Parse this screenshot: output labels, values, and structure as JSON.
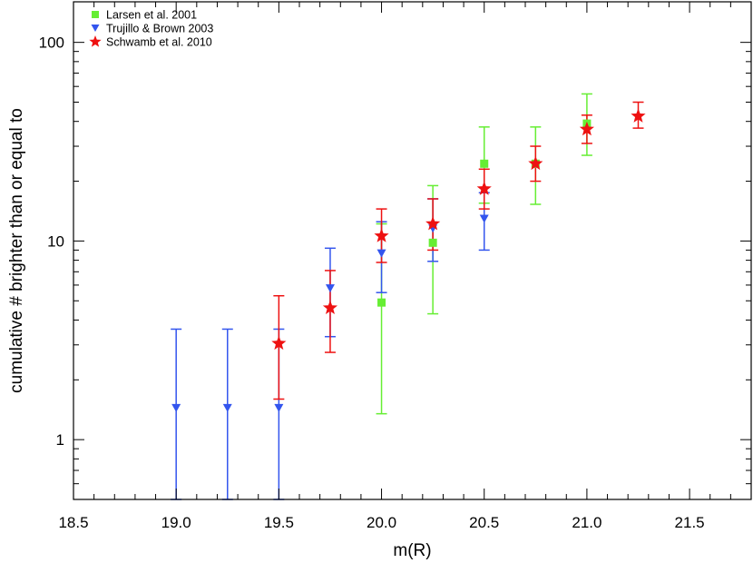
{
  "chart_data": {
    "type": "scatter",
    "title": "",
    "xlabel": "m(R)",
    "ylabel": "cumulative # brighter than or equal to",
    "xlim": [
      18.5,
      21.8
    ],
    "ylim": [
      0.5,
      160
    ],
    "yscale": "log",
    "grid": false,
    "legend_position": "top-left",
    "x_ticks": [
      18.5,
      19.0,
      19.5,
      20.0,
      20.5,
      21.0,
      21.5
    ],
    "x_tick_labels": [
      "18.5",
      "19.0",
      "19.5",
      "20.0",
      "20.5",
      "21.0",
      "21.5"
    ],
    "y_ticks": [
      1,
      10,
      100
    ],
    "y_tick_labels": [
      "1",
      "10",
      "100"
    ],
    "series": [
      {
        "name": "Larsen et al. 2001",
        "marker": "square",
        "color": "#66ee33",
        "points": [
          {
            "x": 20.0,
            "y": 4.9,
            "lo": 1.35,
            "hi": 12.2
          },
          {
            "x": 20.25,
            "y": 9.8,
            "lo": 4.3,
            "hi": 19.0
          },
          {
            "x": 20.5,
            "y": 24.5,
            "lo": 15.5,
            "hi": 37.5
          },
          {
            "x": 20.75,
            "y": 24.5,
            "lo": 15.3,
            "hi": 37.5
          },
          {
            "x": 21.0,
            "y": 39.0,
            "lo": 27.0,
            "hi": 55.0
          }
        ]
      },
      {
        "name": "Trujillo & Brown 2003",
        "marker": "triangle-down",
        "color": "#3355ee",
        "points": [
          {
            "x": 19.0,
            "y": 1.45,
            "lo": 0.5,
            "hi": 3.6
          },
          {
            "x": 19.25,
            "y": 1.45,
            "lo": 0.5,
            "hi": 3.6
          },
          {
            "x": 19.5,
            "y": 1.45,
            "lo": 0.5,
            "hi": 3.6
          },
          {
            "x": 19.75,
            "y": 5.8,
            "lo": 3.3,
            "hi": 9.2
          },
          {
            "x": 20.0,
            "y": 8.7,
            "lo": 5.5,
            "hi": 12.5
          },
          {
            "x": 20.25,
            "y": 11.6,
            "lo": 7.9,
            "hi": 16.3
          },
          {
            "x": 20.5,
            "y": 13.0,
            "lo": 9.0,
            "hi": 17.5
          }
        ]
      },
      {
        "name": "Schwamb et al. 2010",
        "marker": "star",
        "color": "#ee1111",
        "points": [
          {
            "x": 19.5,
            "y": 3.05,
            "lo": 1.6,
            "hi": 5.3
          },
          {
            "x": 19.75,
            "y": 4.6,
            "lo": 2.75,
            "hi": 7.1
          },
          {
            "x": 20.0,
            "y": 10.6,
            "lo": 7.8,
            "hi": 14.5
          },
          {
            "x": 20.25,
            "y": 12.2,
            "lo": 9.0,
            "hi": 16.3
          },
          {
            "x": 20.5,
            "y": 18.3,
            "lo": 14.5,
            "hi": 23.0
          },
          {
            "x": 20.75,
            "y": 24.5,
            "lo": 20.0,
            "hi": 30.0
          },
          {
            "x": 21.0,
            "y": 36.5,
            "lo": 31.0,
            "hi": 43.0
          },
          {
            "x": 21.25,
            "y": 42.5,
            "lo": 37.0,
            "hi": 50.0
          }
        ]
      }
    ]
  }
}
